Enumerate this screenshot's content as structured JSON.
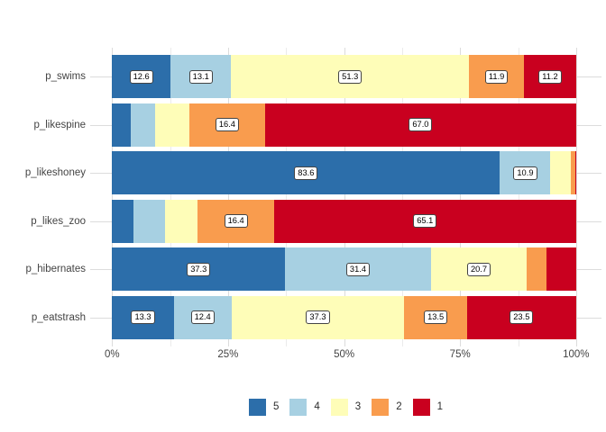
{
  "chart_data": {
    "type": "bar",
    "orientation": "horizontal_stacked_100pct",
    "title": "",
    "categories": [
      "p_swims",
      "p_likespine",
      "p_likeshoney",
      "p_likes_zoo",
      "p_hibernates",
      "p_eatstrash"
    ],
    "series": [
      {
        "name": "5",
        "color": "#2C6EAA",
        "values": [
          12.6,
          4.0,
          83.6,
          4.7,
          37.3,
          13.3
        ]
      },
      {
        "name": "4",
        "color": "#A7D0E2",
        "values": [
          13.1,
          5.2,
          10.9,
          6.8,
          31.4,
          12.4
        ]
      },
      {
        "name": "3",
        "color": "#FEFDB8",
        "values": [
          51.3,
          7.4,
          4.3,
          7.0,
          20.7,
          37.3
        ]
      },
      {
        "name": "2",
        "color": "#F99C4E",
        "values": [
          11.9,
          16.4,
          1.0,
          16.4,
          4.3,
          13.5
        ]
      },
      {
        "name": "1",
        "color": "#C9001F",
        "values": [
          11.2,
          67.0,
          0.2,
          65.1,
          6.3,
          23.5
        ]
      }
    ],
    "value_labels_min_pct": 9,
    "x_ticks": [
      {
        "label": "0%",
        "value": 0
      },
      {
        "label": "25%",
        "value": 25
      },
      {
        "label": "50%",
        "value": 50
      },
      {
        "label": "75%",
        "value": 75
      },
      {
        "label": "100%",
        "value": 100
      }
    ],
    "x_minor_ticks": [
      12.5,
      37.5,
      62.5,
      87.5
    ],
    "xlim": [
      0,
      100
    ],
    "grid": true,
    "legend": {
      "position": "bottom",
      "items": [
        "5",
        "4",
        "3",
        "2",
        "1"
      ]
    }
  }
}
